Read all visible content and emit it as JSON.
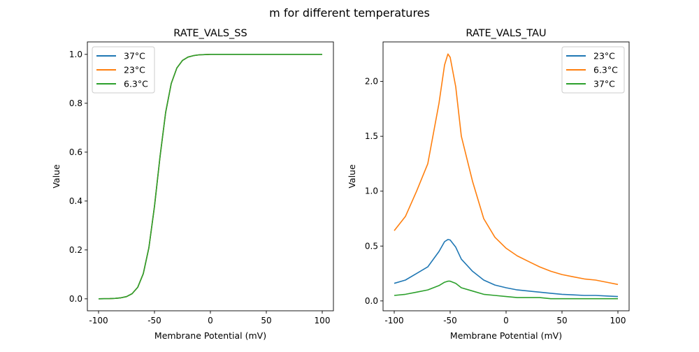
{
  "suptitle": "m for different temperatures",
  "colors": {
    "blue": "#1f77b4",
    "orange": "#ff7f0e",
    "green": "#2ca02c"
  },
  "chart_data": [
    {
      "type": "line",
      "title": "RATE_VALS_SS",
      "xlabel": "Membrane Potential (mV)",
      "ylabel": "Value",
      "xlim": [
        -110,
        110
      ],
      "ylim": [
        -0.049,
        1.051
      ],
      "xticks": [
        -100,
        -50,
        0,
        50,
        100
      ],
      "yticks": [
        0.0,
        0.2,
        0.4,
        0.6,
        0.8,
        1.0
      ],
      "ytick_labels": [
        "0.0",
        "0.2",
        "0.4",
        "0.6",
        "0.8",
        "1.0"
      ],
      "grid": false,
      "legend": "top-left",
      "x": [
        -100,
        -95,
        -90,
        -85,
        -80,
        -75,
        -70,
        -65,
        -60,
        -55,
        -50,
        -45,
        -40,
        -35,
        -30,
        -25,
        -20,
        -15,
        -10,
        -5,
        0,
        10,
        20,
        30,
        40,
        50,
        60,
        70,
        80,
        90,
        100
      ],
      "series": [
        {
          "name": "37°C",
          "color": "#1f77b4",
          "values": [
            0.0001,
            0.0003,
            0.0008,
            0.0018,
            0.004,
            0.009,
            0.021,
            0.047,
            0.103,
            0.209,
            0.378,
            0.583,
            0.763,
            0.881,
            0.944,
            0.975,
            0.989,
            0.995,
            0.998,
            0.999,
            1.0,
            1.0,
            1.0,
            1.0,
            1.0,
            1.0,
            1.0,
            1.0,
            1.0,
            1.0,
            1.0
          ]
        },
        {
          "name": "23°C",
          "color": "#ff7f0e",
          "values": [
            0.0001,
            0.0003,
            0.0008,
            0.0018,
            0.004,
            0.009,
            0.021,
            0.047,
            0.103,
            0.209,
            0.378,
            0.583,
            0.763,
            0.881,
            0.944,
            0.975,
            0.989,
            0.995,
            0.998,
            0.999,
            1.0,
            1.0,
            1.0,
            1.0,
            1.0,
            1.0,
            1.0,
            1.0,
            1.0,
            1.0,
            1.0
          ]
        },
        {
          "name": "6.3°C",
          "color": "#2ca02c",
          "values": [
            0.0001,
            0.0003,
            0.0008,
            0.0018,
            0.004,
            0.009,
            0.021,
            0.047,
            0.103,
            0.209,
            0.378,
            0.583,
            0.763,
            0.881,
            0.944,
            0.975,
            0.989,
            0.995,
            0.998,
            0.999,
            1.0,
            1.0,
            1.0,
            1.0,
            1.0,
            1.0,
            1.0,
            1.0,
            1.0,
            1.0,
            1.0
          ]
        }
      ]
    },
    {
      "type": "line",
      "title": "RATE_VALS_TAU",
      "xlabel": "Membrane Potential (mV)",
      "ylabel": "Value",
      "xlim": [
        -110,
        110
      ],
      "ylim": [
        -0.09,
        2.36
      ],
      "xticks": [
        -100,
        -50,
        0,
        50,
        100
      ],
      "yticks": [
        0.0,
        0.5,
        1.0,
        1.5,
        2.0
      ],
      "ytick_labels": [
        "0.0",
        "0.5",
        "1.0",
        "1.5",
        "2.0"
      ],
      "grid": false,
      "legend": "top-right",
      "x": [
        -100,
        -90,
        -80,
        -70,
        -60,
        -55,
        -52,
        -50,
        -45,
        -40,
        -30,
        -20,
        -10,
        0,
        10,
        20,
        30,
        40,
        50,
        60,
        70,
        80,
        90,
        100
      ],
      "series": [
        {
          "name": "23°C",
          "color": "#1f77b4",
          "values": [
            0.16,
            0.19,
            0.25,
            0.31,
            0.45,
            0.54,
            0.56,
            0.555,
            0.49,
            0.38,
            0.27,
            0.19,
            0.145,
            0.12,
            0.1,
            0.09,
            0.08,
            0.07,
            0.06,
            0.055,
            0.05,
            0.05,
            0.045,
            0.04
          ]
        },
        {
          "name": "6.3°C",
          "color": "#ff7f0e",
          "values": [
            0.64,
            0.77,
            1.0,
            1.25,
            1.8,
            2.15,
            2.25,
            2.22,
            1.95,
            1.5,
            1.09,
            0.75,
            0.58,
            0.48,
            0.41,
            0.36,
            0.31,
            0.27,
            0.24,
            0.22,
            0.2,
            0.19,
            0.17,
            0.15
          ]
        },
        {
          "name": "37°C",
          "color": "#2ca02c",
          "values": [
            0.05,
            0.06,
            0.08,
            0.1,
            0.14,
            0.17,
            0.18,
            0.18,
            0.16,
            0.12,
            0.09,
            0.06,
            0.05,
            0.04,
            0.03,
            0.03,
            0.03,
            0.02,
            0.02,
            0.02,
            0.02,
            0.02,
            0.02,
            0.02
          ]
        }
      ]
    }
  ]
}
